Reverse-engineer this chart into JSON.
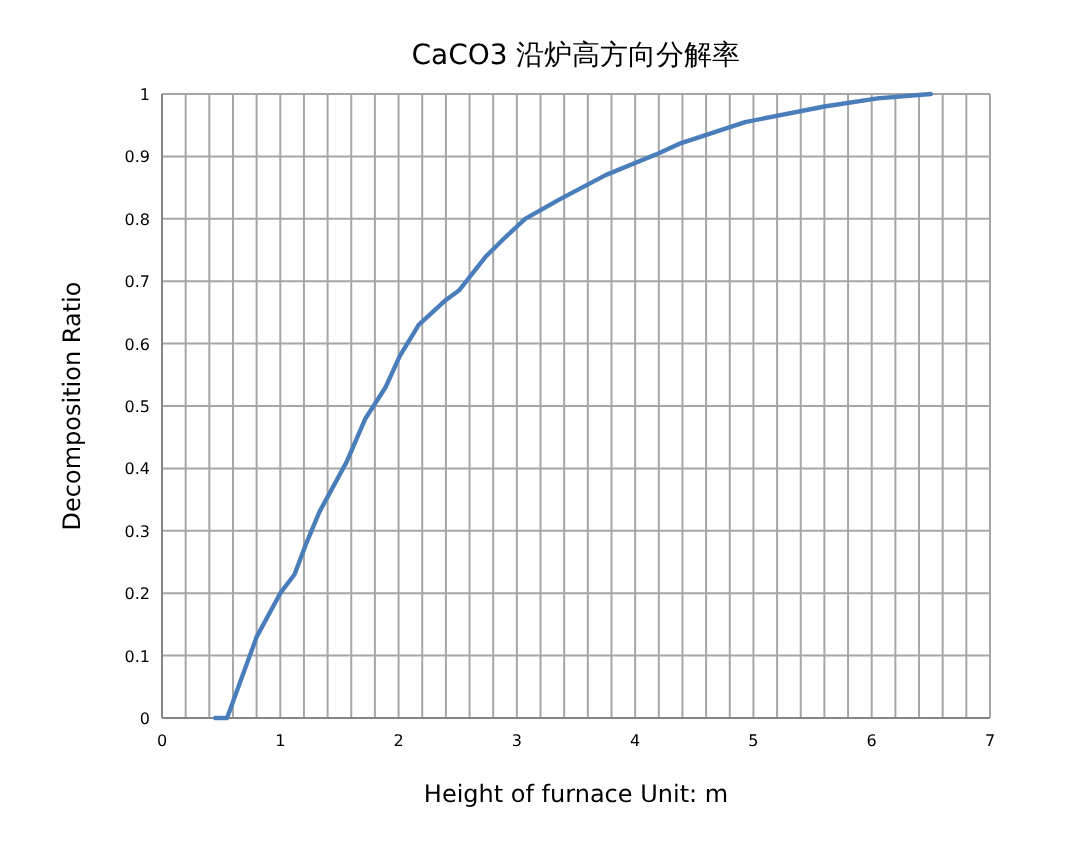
{
  "chart_data": {
    "type": "line",
    "title": "CaCO3 沿炉高方向分解率",
    "xlabel": "Height of furnace Unit: m",
    "ylabel": "Decomposition Ratio",
    "x": [
      0.45,
      0.55,
      0.8,
      1.0,
      1.12,
      1.22,
      1.33,
      1.56,
      1.72,
      1.89,
      2.01,
      2.17,
      2.4,
      2.51,
      2.74,
      2.9,
      3.07,
      3.35,
      3.75,
      4.2,
      4.37,
      4.93,
      5.6,
      6.05,
      6.5
    ],
    "values": [
      0,
      0,
      0.13,
      0.2,
      0.23,
      0.28,
      0.33,
      0.41,
      0.48,
      0.53,
      0.58,
      0.63,
      0.67,
      0.685,
      0.74,
      0.77,
      0.8,
      0.83,
      0.87,
      0.905,
      0.92,
      0.955,
      0.98,
      0.993,
      1.0
    ],
    "color": "#4a7ebb",
    "xlim": [
      0,
      7
    ],
    "ylim": [
      0,
      1
    ],
    "xticks": [
      0,
      {
        "value": 0.2,
        "label": null
      },
      {
        "value": 0.4,
        "label": null
      },
      {
        "value": 0.6,
        "label": null
      },
      {
        "value": 0.8,
        "label": null
      },
      1,
      {
        "value": 1.2,
        "label": null
      },
      {
        "value": 1.4,
        "label": null
      },
      {
        "value": 1.6,
        "label": null
      },
      {
        "value": 1.8,
        "label": null
      },
      2,
      {
        "value": 2.2,
        "label": null
      },
      {
        "value": 2.4,
        "label": null
      },
      {
        "value": 2.6,
        "label": null
      },
      {
        "value": 2.8,
        "label": null
      },
      3,
      {
        "value": 3.2,
        "label": null
      },
      {
        "value": 3.4,
        "label": null
      },
      {
        "value": 3.6,
        "label": null
      },
      {
        "value": 3.8,
        "label": null
      },
      4,
      {
        "value": 4.2,
        "label": null
      },
      {
        "value": 4.4,
        "label": null
      },
      {
        "value": 4.6,
        "label": null
      },
      {
        "value": 4.8,
        "label": null
      },
      5,
      {
        "value": 5.2,
        "label": null
      },
      {
        "value": 5.4,
        "label": null
      },
      {
        "value": 5.6,
        "label": null
      },
      {
        "value": 5.8,
        "label": null
      },
      6,
      {
        "value": 6.2,
        "label": null
      },
      {
        "value": 6.4,
        "label": null
      },
      {
        "value": 6.6,
        "label": null
      },
      {
        "value": 6.8,
        "label": null
      },
      7
    ],
    "yticks": [
      0,
      0.1,
      0.2,
      0.3,
      0.4,
      0.5,
      0.6,
      0.7,
      0.8,
      0.9,
      1
    ],
    "grid": true
  }
}
